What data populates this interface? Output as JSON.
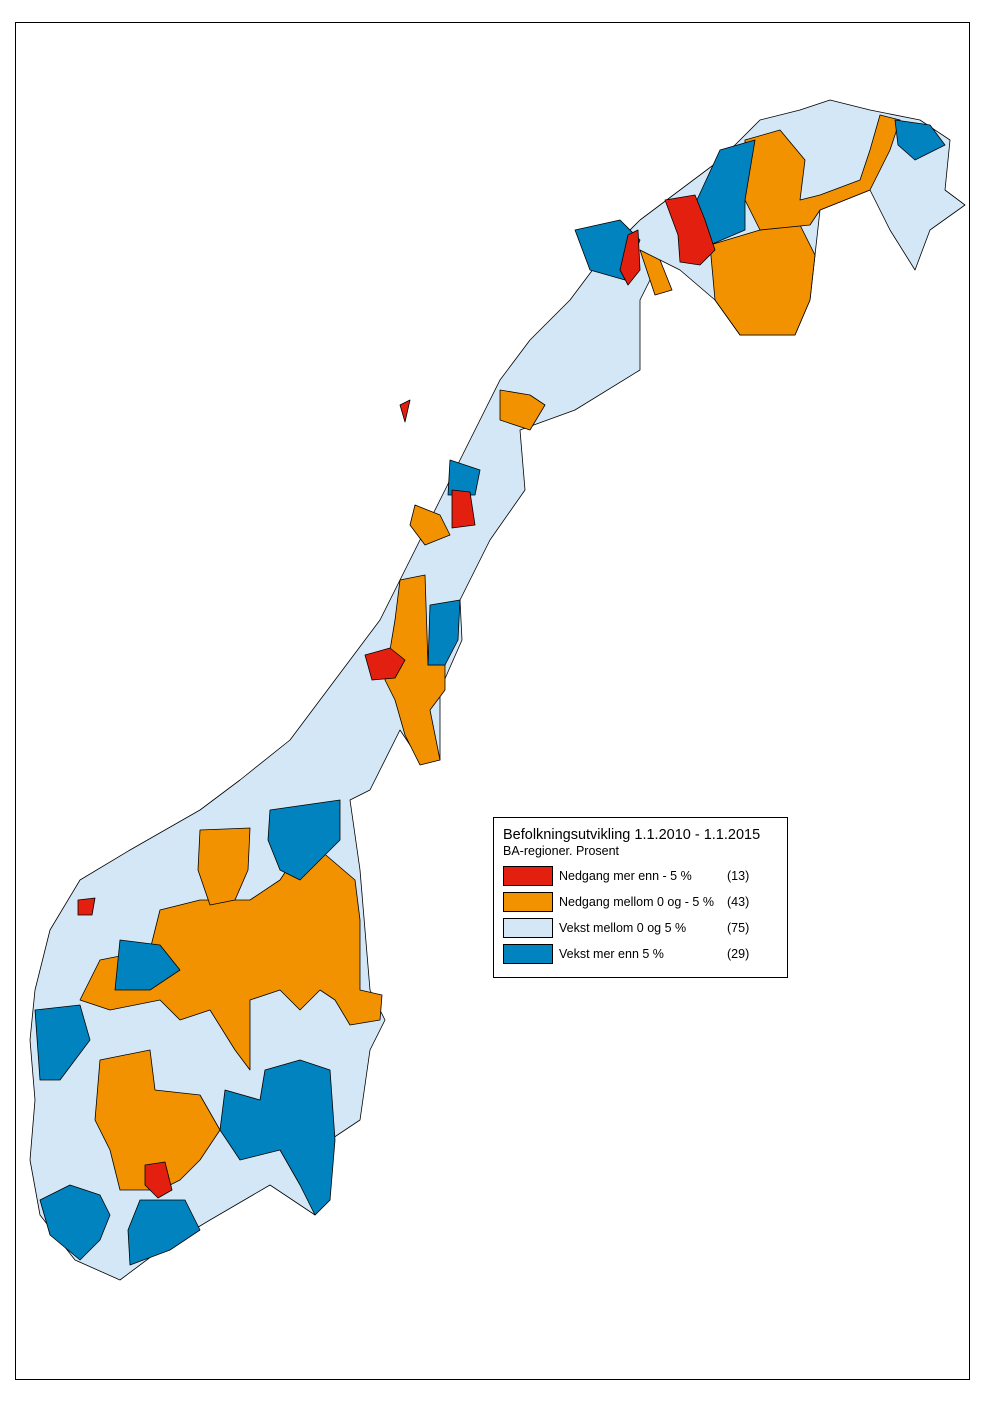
{
  "legend": {
    "title": "Befolkningsutvikling 1.1.2010 - 1.1.2015",
    "subtitle": "BA-regioner. Prosent",
    "classes": [
      {
        "label": "Nedgang mer enn - 5 %",
        "count": "(13)",
        "color": "#e3200f"
      },
      {
        "label": "Nedgang mellom 0 og - 5 %",
        "count": "(43)",
        "color": "#f39200"
      },
      {
        "label": "Vekst mellom 0 og 5 %",
        "count": "(75)",
        "color": "#d3e7f6"
      },
      {
        "label": "Vekst mer enn 5 %",
        "count": "(29)",
        "color": "#0083bf"
      }
    ]
  }
}
